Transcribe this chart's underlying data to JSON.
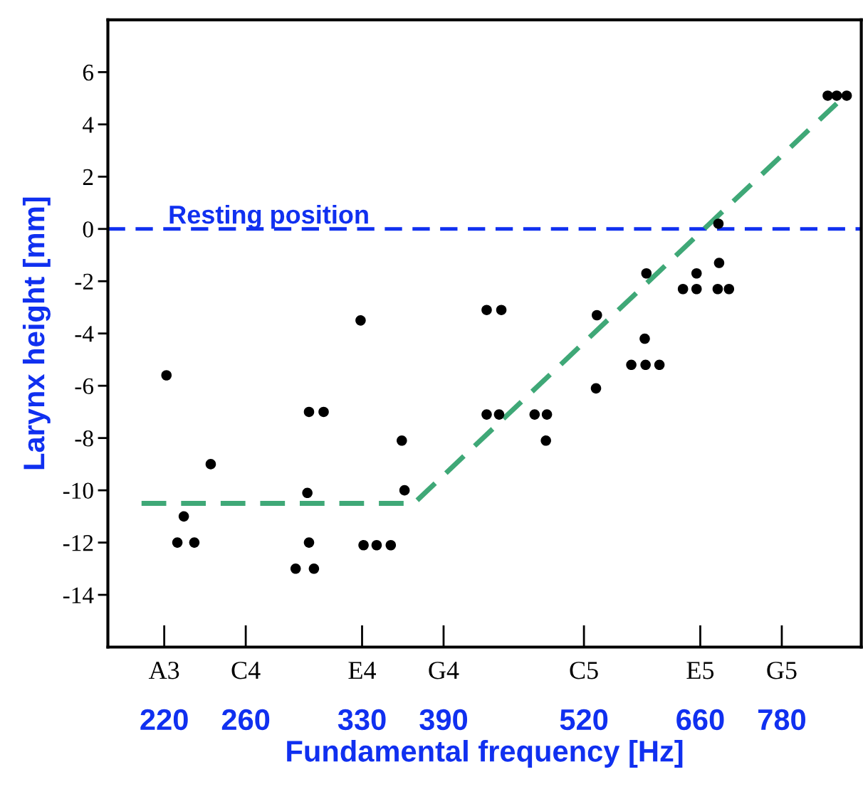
{
  "chart_data": {
    "type": "scatter",
    "xlabel": "Fundamental frequency [Hz]",
    "ylabel": "Larynx height [mm]",
    "log": "x",
    "xlim": [
      196,
      918
    ],
    "ylim": [
      -16,
      8
    ],
    "xticks": [
      220,
      260,
      330,
      390,
      520,
      660,
      780
    ],
    "annotations": [
      "A3",
      "C4",
      "E4",
      "G4",
      "C5",
      "E5",
      "G5"
    ],
    "yticks": [
      6,
      4,
      2,
      0,
      -2,
      -4,
      -6,
      -8,
      -10,
      -12,
      -14
    ],
    "grid": false,
    "legend": false,
    "series": [
      {
        "type": "scatter",
        "color": "#000000",
        "marker": "circle",
        "x": [
          221,
          229,
          226,
          234,
          242,
          288,
          299,
          296,
          295,
          296,
          305,
          329,
          331,
          340,
          350,
          358,
          360,
          426,
          439,
          426,
          437,
          470,
          482,
          481,
          534,
          533,
          591,
          589,
          573,
          590,
          607,
          655,
          637,
          655,
          685,
          686,
          684,
          700,
          857,
          873,
          891
        ],
        "values": [
          -5.6,
          -11,
          -12,
          -12,
          -9,
          -13,
          -13,
          -12,
          -10.1,
          -7,
          -7,
          -3.5,
          -12.1,
          -12.1,
          -12.1,
          -8.1,
          -10,
          -3.1,
          -3.1,
          -7.1,
          -7.1,
          -7.1,
          -7.1,
          -8.1,
          -3.3,
          -6.1,
          -1.7,
          -4.2,
          -5.2,
          -5.2,
          -5.2,
          -1.7,
          -2.3,
          -2.3,
          0.2,
          -1.3,
          -2.3,
          -2.3,
          5.1,
          5.1,
          5.1
        ]
      },
      {
        "type": "line",
        "color": "#3fa877",
        "line_style": "dashed",
        "marker": "none",
        "x": [
          210,
          367,
          873
        ],
        "values": [
          -10.5,
          -10.5,
          4.8
        ]
      }
    ],
    "ref_lines": [
      {
        "axis": "y",
        "value": 0,
        "label": "Resting position",
        "color": "#1030f0",
        "line_style": "dashed"
      }
    ]
  }
}
